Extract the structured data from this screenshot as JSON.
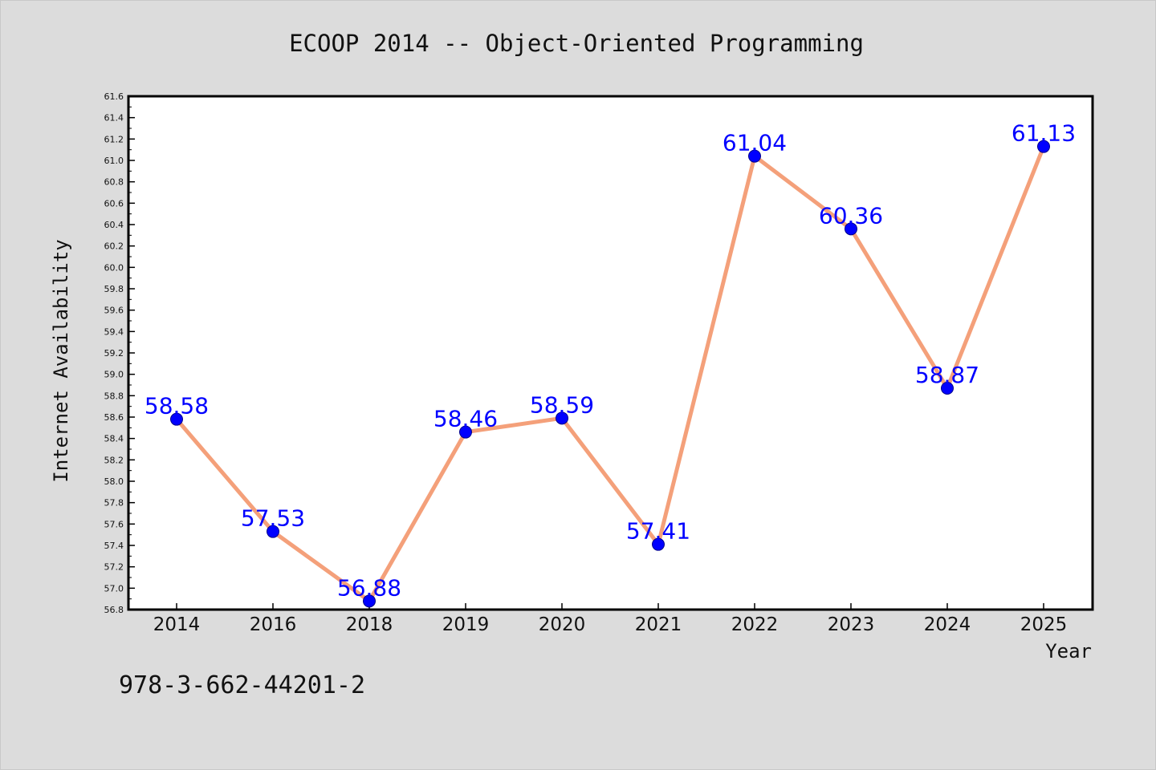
{
  "chart_data": {
    "type": "line",
    "title": "ECOOP 2014 -- Object-Oriented Programming",
    "xlabel": "Year",
    "ylabel": "Internet Availability",
    "categories": [
      "2014",
      "2016",
      "2018",
      "2019",
      "2020",
      "2021",
      "2022",
      "2023",
      "2024",
      "2025"
    ],
    "series": [
      {
        "values": [
          58.58,
          57.53,
          56.88,
          58.46,
          58.59,
          57.41,
          61.04,
          60.36,
          58.87,
          61.13
        ],
        "labels": [
          "58.58",
          "57.53",
          "56.88",
          "58.46",
          "58.59",
          "57.41",
          "61.04",
          "60.36",
          "58.87",
          "61.13"
        ]
      }
    ],
    "ylim": [
      56.8,
      61.6
    ],
    "yticks": [
      "56.8",
      "57.0",
      "57.2",
      "57.4",
      "57.6",
      "57.8",
      "58.0",
      "58.2",
      "58.4",
      "58.6",
      "58.8",
      "59.0",
      "59.2",
      "59.4",
      "59.6",
      "59.8",
      "60.0",
      "60.2",
      "60.4",
      "60.6",
      "60.8",
      "61.0",
      "61.2",
      "61.4",
      "61.6"
    ],
    "grid": false,
    "legend": "none",
    "colors": {
      "line": "#f4a07a",
      "marker": "#0000ff",
      "label": "#0000ff",
      "background": "#dcdcdc",
      "plot_background": "#ffffff"
    }
  },
  "footer": {
    "isbn": "978-3-662-44201-2"
  }
}
